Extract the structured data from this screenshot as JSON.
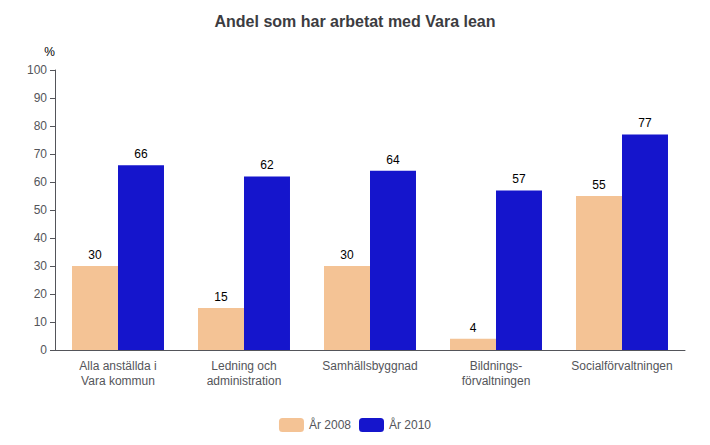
{
  "chart_data": {
    "type": "bar",
    "title": "Andel som har arbetat med Vara lean",
    "ylabel": "%",
    "categories": [
      "Alla anställda i\nVara kommun",
      "Ledning och\nadministration",
      "Samhällsbyggnad",
      "Bildnings-\nförvaltningen",
      "Socialförvaltningen"
    ],
    "series": [
      {
        "name": "År 2008",
        "color": "#F4C395",
        "values": [
          30,
          15,
          30,
          4,
          55
        ]
      },
      {
        "name": "År 2010",
        "color": "#1515CC",
        "values": [
          66,
          62,
          64,
          57,
          77
        ]
      }
    ],
    "ylim": [
      0,
      100
    ],
    "yticks": [
      0,
      10,
      20,
      30,
      40,
      50,
      60,
      70,
      80,
      90,
      100
    ],
    "grid": false,
    "legend": "bottom",
    "data_labels": true
  }
}
